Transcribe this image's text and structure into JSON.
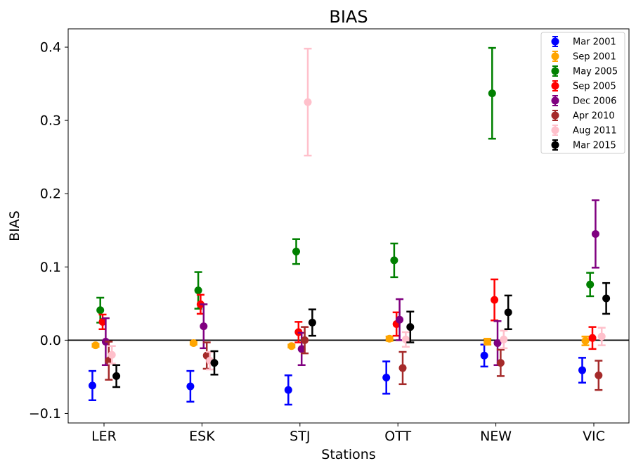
{
  "chart_data": {
    "type": "scatter",
    "title": "BIAS",
    "xlabel": "Stations",
    "ylabel": "BIAS",
    "categories": [
      "LER",
      "ESK",
      "STJ",
      "OTT",
      "NEW",
      "VIC"
    ],
    "ylim": [
      -0.113,
      0.425
    ],
    "yticks": [
      -0.1,
      0.0,
      0.1,
      0.2,
      0.3,
      0.4
    ],
    "ytick_labels": [
      "−0.1",
      "0.0",
      "0.1",
      "0.2",
      "0.3",
      "0.4"
    ],
    "zero_line": 0,
    "grid": false,
    "legend_position": "upper right",
    "error_bars": true,
    "series": [
      {
        "name": "Mar 2001",
        "color": "#0000ff",
        "values": [
          -0.062,
          -0.063,
          -0.068,
          -0.051,
          -0.021,
          -0.041
        ],
        "errors": [
          0.02,
          0.021,
          0.02,
          0.022,
          0.015,
          0.017
        ]
      },
      {
        "name": "Sep 2001",
        "color": "#ffa500",
        "values": [
          -0.007,
          -0.004,
          -0.008,
          0.002,
          -0.002,
          -0.001
        ],
        "errors": [
          0.002,
          0.002,
          0.002,
          0.003,
          0.004,
          0.006
        ]
      },
      {
        "name": "May 2005",
        "color": "#008000",
        "values": [
          0.041,
          0.068,
          0.121,
          0.109,
          0.337,
          0.076
        ],
        "errors": [
          0.017,
          0.025,
          0.017,
          0.023,
          0.062,
          0.016
        ]
      },
      {
        "name": "Sep 2005",
        "color": "#ff0000",
        "values": [
          0.025,
          0.049,
          0.011,
          0.022,
          0.055,
          0.003
        ],
        "errors": [
          0.01,
          0.013,
          0.014,
          0.016,
          0.028,
          0.015
        ]
      },
      {
        "name": "Dec 2006",
        "color": "#800080",
        "values": [
          -0.002,
          0.019,
          -0.012,
          0.028,
          -0.004,
          0.145
        ],
        "errors": [
          0.032,
          0.03,
          0.022,
          0.028,
          0.03,
          0.046
        ]
      },
      {
        "name": "Apr 2010",
        "color": "#a52a2a",
        "values": [
          -0.028,
          -0.021,
          0.0,
          -0.038,
          -0.031,
          -0.048
        ],
        "errors": [
          0.026,
          0.018,
          0.018,
          0.022,
          0.018,
          0.02
        ]
      },
      {
        "name": "Aug 2011",
        "color": "#ffc0cb",
        "values": [
          -0.02,
          -0.028,
          0.325,
          0.001,
          0.001,
          0.005
        ],
        "errors": [
          0.012,
          0.012,
          0.073,
          0.01,
          0.012,
          0.012
        ]
      },
      {
        "name": "Mar 2015",
        "color": "#000000",
        "values": [
          -0.049,
          -0.031,
          0.024,
          0.018,
          0.038,
          0.057
        ],
        "errors": [
          0.015,
          0.016,
          0.018,
          0.021,
          0.023,
          0.021
        ]
      }
    ]
  }
}
